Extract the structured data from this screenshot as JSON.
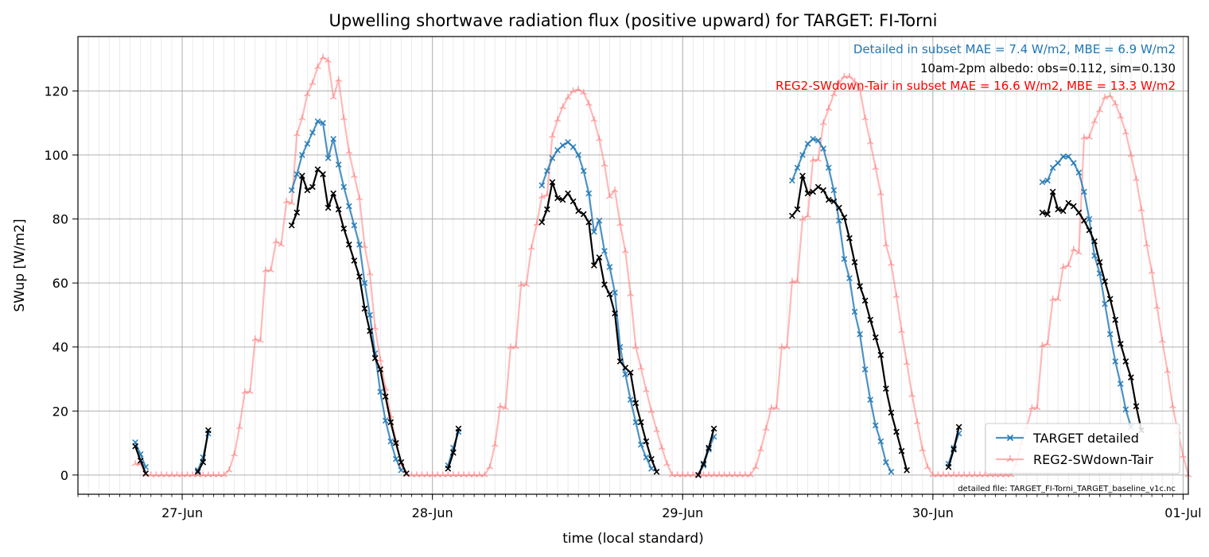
{
  "chart_data": {
    "type": "line",
    "title": "Upwelling shortwave radiation flux (positive upward) for TARGET: FI-Torni",
    "xlabel": "time (local standard)",
    "ylabel": "SWup [W/m2]",
    "x_range": [
      "2015-06-26 14:00",
      "2015-07-01 00:30"
    ],
    "ylim": [
      -6,
      137
    ],
    "x_ticks": [
      {
        "date": "2015-06-27 00:00",
        "label": "27-Jun"
      },
      {
        "date": "2015-06-28 00:00",
        "label": "28-Jun"
      },
      {
        "date": "2015-06-29 00:00",
        "label": "29-Jun"
      },
      {
        "date": "2015-06-30 00:00",
        "label": "30-Jun"
      },
      {
        "date": "2015-07-01 00:00",
        "label": "01-Jul"
      }
    ],
    "y_ticks": [
      0,
      20,
      40,
      60,
      80,
      100,
      120
    ],
    "grid": true,
    "minor_grid": "hourly",
    "legend_position": "lower-right",
    "annotations": [
      {
        "text": "Detailed in subset MAE = 7.4 W/m2, MBE = 6.9 W/m2",
        "color": "#1f77b4"
      },
      {
        "text": "10am-2pm albedo: obs=0.112, sim=0.130",
        "color": "#000000"
      },
      {
        "text": "REG2-SWdown-Tair in subset MAE = 16.6 W/m2, MBE = 13.3 W/m2",
        "color": "#ff0000"
      }
    ],
    "footnote": "detailed file: TARGET_FI-Torni_TARGET_baseline_v1c.nc",
    "series": [
      {
        "name": "TARGET detailed",
        "color": "#1f77b4",
        "marker": "x",
        "in_legend": true,
        "segments": [
          {
            "start": "2015-06-26 19:30",
            "values": [
              10.2,
              6.5,
              2.5
            ]
          },
          {
            "start": "2015-06-27 01:30",
            "values": [
              1.5,
              5.5,
              13.0
            ]
          },
          {
            "start": "2015-06-27 10:30",
            "values": [
              89,
              94,
              100,
              103.5,
              107,
              110.5,
              110,
              99,
              105,
              97,
              90,
              84,
              78,
              72,
              60,
              50,
              38,
              26,
              17,
              10.5,
              5,
              1.5
            ]
          },
          {
            "start": "2015-06-28 01:30",
            "values": [
              3,
              8.5,
              13.5
            ]
          },
          {
            "start": "2015-06-28 10:30",
            "values": [
              90.5,
              95,
              99,
              101.5,
              103,
              104,
              102.5,
              100,
              95,
              88,
              76,
              79.5,
              70,
              65,
              57,
              40,
              31.5,
              23.5,
              16.5,
              9.5,
              5.5,
              2
            ]
          },
          {
            "start": "2015-06-29 01:30",
            "values": [
              0,
              3,
              8,
              12
            ]
          },
          {
            "start": "2015-06-29 10:30",
            "values": [
              92,
              96,
              100,
              103.5,
              105,
              104.5,
              102,
              96,
              89,
              79.5,
              67.5,
              61.5,
              51,
              44,
              33,
              23.5,
              15.5,
              10.5,
              4,
              1
            ]
          },
          {
            "start": "2015-06-30 01:30",
            "values": [
              3.5,
              8.5,
              13
            ]
          },
          {
            "start": "2015-06-30 10:30",
            "values": [
              91.5,
              92,
              96,
              97.5,
              99.5,
              99.5,
              97.5,
              94.5,
              88.5,
              80,
              68.5,
              63,
              53.5,
              44,
              35.5,
              28.5,
              20.5,
              15
            ]
          }
        ]
      },
      {
        "name": "REG2-SWdown-Tair",
        "color": "#ff8080",
        "marker": "tri",
        "in_legend": true,
        "segments": [
          {
            "start": "2015-06-26 19:30",
            "values": [
              3.5,
              3.5,
              0,
              0,
              0,
              0,
              0,
              0,
              0,
              0,
              0,
              0,
              0,
              0,
              0,
              0,
              0,
              0,
              1.5,
              6.5,
              15,
              26,
              26,
              42.5,
              42,
              64,
              64,
              73,
              72,
              85.5,
              85,
              106.5,
              111.5,
              119,
              122.5,
              127.5,
              130.5,
              129.5,
              118,
              123.5,
              111.5,
              101,
              93.5,
              86.5,
              71.5,
              63,
              46,
              36,
              27,
              18.5,
              10.5,
              3.5,
              0,
              0,
              0,
              0,
              0,
              0,
              0,
              0,
              0,
              0,
              0,
              0,
              0,
              0,
              0,
              0,
              2.5,
              9.5,
              21.5,
              21,
              40,
              40,
              59.5,
              59.5,
              71,
              78.5,
              87,
              87.5,
              106,
              111,
              115,
              118,
              120,
              120.5,
              119.5,
              116,
              111,
              105,
              97,
              87,
              89,
              78.5,
              70,
              56.5,
              40,
              33.5,
              26.5,
              20,
              14,
              8.5,
              3.5,
              0,
              0,
              0,
              0,
              0,
              0,
              0,
              0,
              0,
              0,
              0,
              0,
              0,
              0,
              0,
              0,
              2.5,
              8,
              14.5,
              21,
              21,
              40,
              40,
              60.5,
              60.5,
              80,
              81,
              98.5,
              98.5,
              110,
              114.5,
              119,
              122.5,
              124.5,
              124.5,
              123,
              120.5,
              111.5,
              104,
              96,
              88,
              72,
              66,
              56,
              45,
              35,
              25,
              16.5,
              8,
              2.5,
              0,
              0,
              0,
              0,
              0,
              0,
              0,
              0,
              0,
              0,
              0,
              0,
              0,
              0,
              0,
              0,
              3.5,
              10,
              15,
              21,
              21,
              40.5,
              41,
              55,
              55,
              65,
              65.5,
              70.5,
              69.5,
              105.5,
              105.5,
              110.5,
              114,
              118,
              118.5,
              116,
              112,
              107,
              100,
              92.5,
              83,
              72,
              63.5,
              52.5,
              42,
              32.5,
              21.5,
              13.5,
              6,
              0
            ]
          }
        ]
      },
      {
        "name": "observed",
        "color": "#000000",
        "marker": "x",
        "in_legend": false,
        "segments": [
          {
            "start": "2015-06-26 19:30",
            "values": [
              9,
              4.5,
              0.5
            ]
          },
          {
            "start": "2015-06-27 01:30",
            "values": [
              1,
              4,
              14
            ]
          },
          {
            "start": "2015-06-27 10:30",
            "values": [
              78,
              82,
              93.5,
              89,
              90,
              95.5,
              94,
              83.5,
              88,
              83,
              77,
              72,
              67,
              62,
              52,
              45,
              36.5,
              33,
              24.5,
              16.5,
              10,
              4,
              0.5
            ]
          },
          {
            "start": "2015-06-28 01:30",
            "values": [
              2,
              7,
              14.5
            ]
          },
          {
            "start": "2015-06-28 10:30",
            "values": [
              79,
              83,
              91.5,
              86.5,
              86,
              88,
              85.5,
              82.5,
              81.5,
              79,
              65.5,
              68,
              59.5,
              56.5,
              50.5,
              35.5,
              33.5,
              32,
              22.5,
              16.5,
              10.5,
              5,
              1
            ]
          },
          {
            "start": "2015-06-29 01:30",
            "values": [
              0,
              3.5,
              8.5,
              14.5
            ]
          },
          {
            "start": "2015-06-29 10:30",
            "values": [
              81,
              83,
              93.5,
              88,
              88.5,
              90,
              89,
              86,
              85.5,
              83.5,
              80.5,
              74,
              66.5,
              59,
              54.5,
              48.5,
              43,
              37.5,
              27,
              19.5,
              13.5,
              7.5,
              1.5
            ]
          },
          {
            "start": "2015-06-30 01:30",
            "values": [
              2.5,
              8,
              15
            ]
          },
          {
            "start": "2015-06-30 10:30",
            "values": [
              82,
              81.5,
              88.5,
              83,
              82.5,
              85,
              84,
              82,
              79.5,
              76.5,
              73,
              66.5,
              60.5,
              55,
              48.5,
              41,
              35.5,
              30.5,
              21.5,
              14
            ]
          }
        ]
      }
    ]
  }
}
